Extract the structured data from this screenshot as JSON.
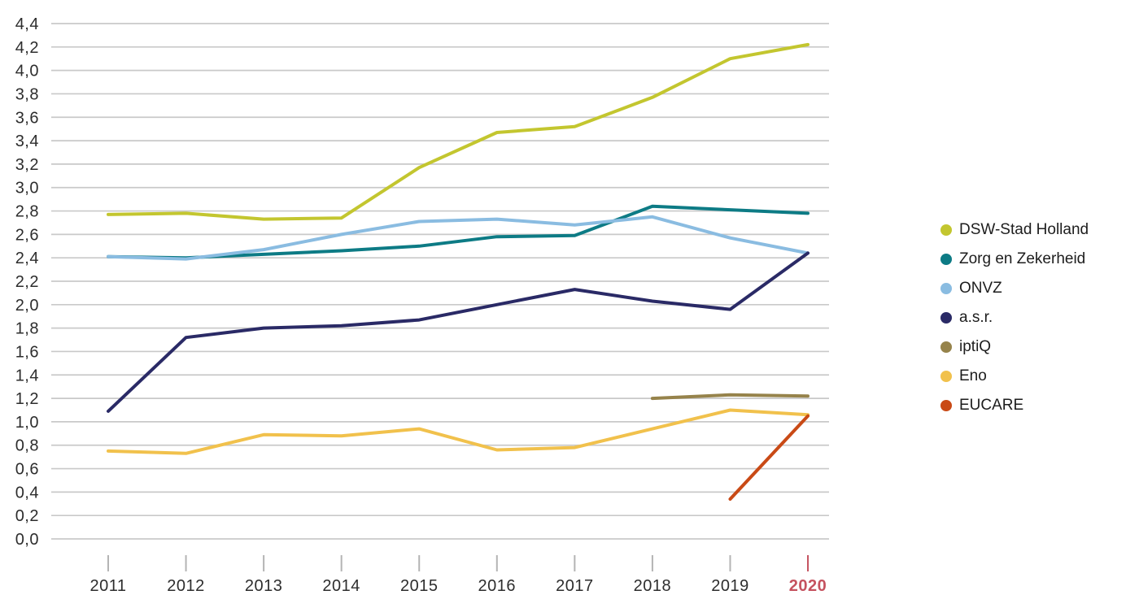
{
  "chart_data": {
    "type": "line",
    "title": "",
    "xlabel": "",
    "ylabel": "",
    "categories": [
      "2011",
      "2012",
      "2013",
      "2014",
      "2015",
      "2016",
      "2017",
      "2018",
      "2019",
      "2020"
    ],
    "series": [
      {
        "name": "DSW-Stad Holland",
        "color": "#c3c62f",
        "values": [
          2.77,
          2.78,
          2.73,
          2.74,
          3.17,
          3.47,
          3.52,
          3.77,
          4.1,
          4.22
        ]
      },
      {
        "name": "Zorg en Zekerheid",
        "color": "#0d7b85",
        "values": [
          2.41,
          2.4,
          2.43,
          2.46,
          2.5,
          2.58,
          2.59,
          2.84,
          2.81,
          2.78
        ]
      },
      {
        "name": "ONVZ",
        "color": "#8abce1",
        "values": [
          2.41,
          2.39,
          2.47,
          2.6,
          2.71,
          2.73,
          2.68,
          2.75,
          2.57,
          2.44
        ]
      },
      {
        "name": "a.s.r.",
        "color": "#2a2a66",
        "values": [
          1.09,
          1.72,
          1.8,
          1.82,
          1.87,
          2.0,
          2.13,
          2.03,
          1.96,
          2.44
        ]
      },
      {
        "name": "iptiQ",
        "color": "#96834b",
        "values": [
          null,
          null,
          null,
          null,
          null,
          null,
          null,
          1.2,
          1.23,
          1.22
        ]
      },
      {
        "name": "Eno",
        "color": "#f1c14c",
        "values": [
          0.75,
          0.73,
          0.89,
          0.88,
          0.94,
          0.76,
          0.78,
          0.94,
          1.1,
          1.06
        ]
      },
      {
        "name": "EUCARE",
        "color": "#c94a16",
        "values": [
          null,
          null,
          null,
          null,
          null,
          null,
          null,
          null,
          0.34,
          1.05
        ]
      }
    ],
    "ylim": [
      0.0,
      4.4
    ],
    "ytick_step": 0.2,
    "grid": true,
    "legend_position": "right",
    "x_highlight": {
      "label": "2020",
      "color": "#c5525f"
    }
  },
  "axes": {
    "y_labels": [
      "4,4",
      "4,2",
      "4,0",
      "3,8",
      "3,6",
      "3,4",
      "3,2",
      "3,0",
      "2,8",
      "2,6",
      "2,4",
      "2,2",
      "2,0",
      "1,8",
      "1,6",
      "1,4",
      "1,2",
      "1,0",
      "0,8",
      "0,6",
      "0,4",
      "0,2",
      "0,0"
    ],
    "x_labels": [
      "2011",
      "2012",
      "2013",
      "2014",
      "2015",
      "2016",
      "2017",
      "2018",
      "2019",
      "2020"
    ]
  }
}
